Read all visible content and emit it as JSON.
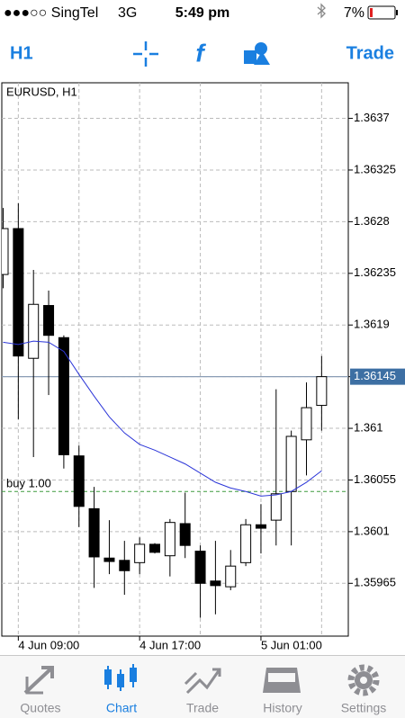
{
  "status_bar": {
    "carrier": "●●●○○ SingTel",
    "network": "3G",
    "time": "5:49 pm",
    "battery": "7%"
  },
  "toolbar": {
    "timeframe": "H1",
    "trade": "Trade"
  },
  "tabs": [
    "Quotes",
    "Chart",
    "Trade",
    "History",
    "Settings"
  ],
  "active_tab": "Chart",
  "chart_data": {
    "type": "candlestick",
    "title": "EURUSD, H1",
    "categories": [
      null,
      "4 Jun 09:00",
      null,
      null,
      null,
      null,
      null,
      null,
      null,
      "4 Jun 17:00",
      null,
      null,
      null,
      null,
      null,
      null,
      null,
      "5 Jun 01:00",
      null,
      null,
      null,
      null
    ],
    "open": [
      1.36234,
      1.36274,
      1.36161,
      1.36207,
      1.36179,
      1.36076,
      1.3603,
      1.35987,
      1.35985,
      1.35983,
      1.35999,
      1.35989,
      1.36017,
      1.35993,
      1.35967,
      1.35962,
      1.35983,
      1.36016,
      1.3602,
      1.36045,
      1.3609,
      1.3612
    ],
    "high": [
      1.36292,
      1.36296,
      1.36238,
      1.3622,
      1.36181,
      1.36085,
      1.36049,
      1.3602,
      1.36002,
      1.36005,
      1.36,
      1.36021,
      1.36044,
      1.35998,
      1.36002,
      1.35994,
      1.36021,
      1.36034,
      1.36134,
      1.36098,
      1.3614,
      1.36163
    ],
    "low": [
      1.36222,
      1.36108,
      1.36075,
      1.36129,
      1.36065,
      1.36014,
      1.35961,
      1.35973,
      1.35955,
      1.35973,
      1.35991,
      1.35971,
      1.35987,
      1.35935,
      1.35938,
      1.35959,
      1.3598,
      1.35991,
      1.35998,
      1.35998,
      1.36059,
      1.36098
    ],
    "close": [
      1.36274,
      1.36163,
      1.36208,
      1.36181,
      1.36077,
      1.36032,
      1.35988,
      1.35984,
      1.35976,
      1.35999,
      1.35992,
      1.36018,
      1.35998,
      1.35965,
      1.35963,
      1.3598,
      1.36016,
      1.36013,
      1.36043,
      1.36093,
      1.36118,
      1.36145
    ],
    "ma": {
      "color": "#2b35d8",
      "values": [
        1.36175,
        1.36173,
        1.36176,
        1.36175,
        1.36167,
        1.36147,
        1.36128,
        1.3611,
        1.36096,
        1.36086,
        1.36081,
        1.36075,
        1.36069,
        1.36061,
        1.36053,
        1.36048,
        1.36045,
        1.36041,
        1.36042,
        1.36045,
        1.36053,
        1.36063
      ]
    },
    "buy_line": {
      "label": "buy 1.00",
      "value": 1.36045,
      "color": "#3f9a3f"
    },
    "bid_line": 1.36145,
    "ylim": [
      1.35919,
      1.36401
    ],
    "yticks": [
      1.3637,
      1.36325,
      1.3628,
      1.36235,
      1.3619,
      1.36145,
      1.361,
      1.36055,
      1.3601,
      1.35965
    ],
    "grid": true
  }
}
